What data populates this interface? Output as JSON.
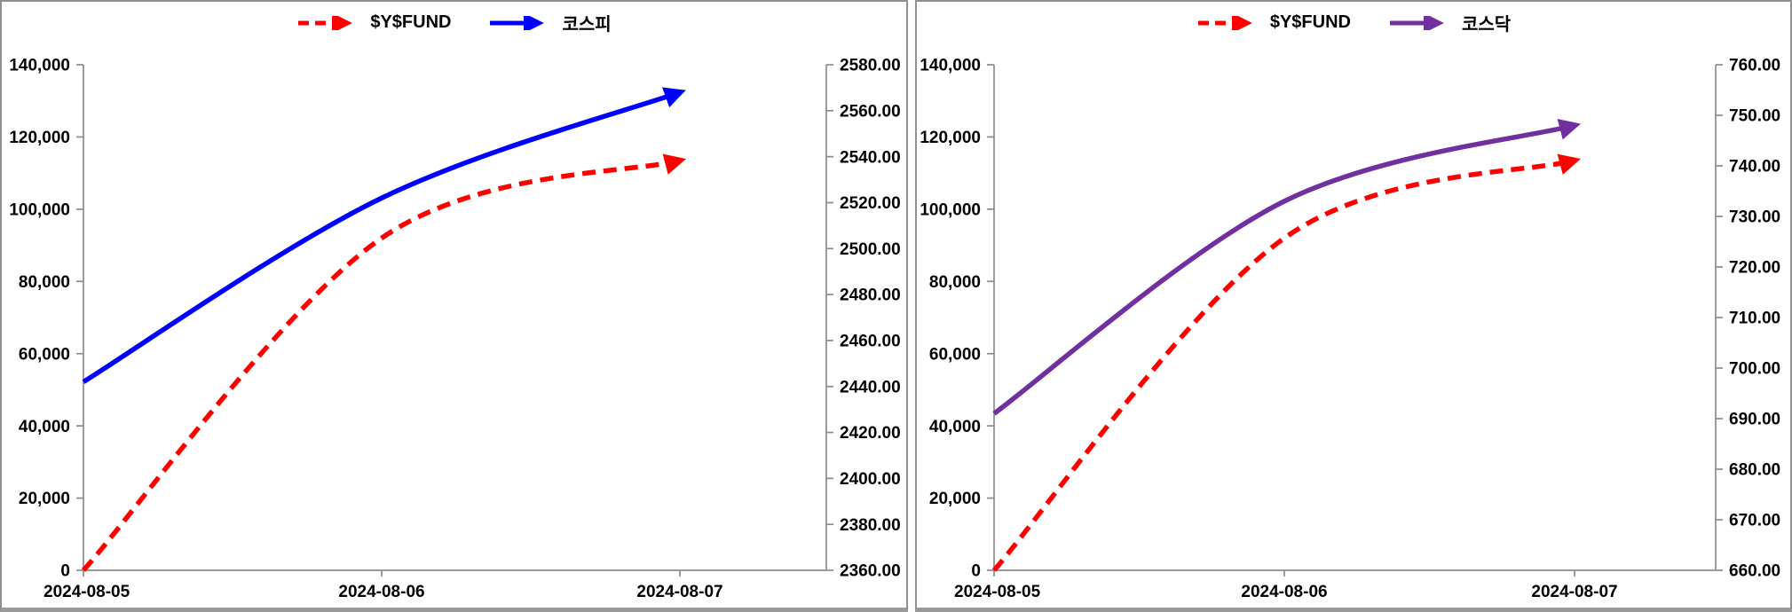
{
  "page": {
    "description": "Two side-by-side fund performance line charts",
    "axis_color": "#8c8c8c",
    "text_color": "#000000"
  },
  "chart_data": [
    {
      "type": "line",
      "title": "",
      "x": [
        "2024-08-05",
        "2024-08-06",
        "2024-08-07"
      ],
      "series": [
        {
          "name": "$Y$FUND",
          "axis": "left",
          "color": "#ff0000",
          "style": "dashed",
          "values": [
            0,
            92000,
            113500
          ]
        },
        {
          "name": "코스피",
          "axis": "right",
          "color": "#0000ff",
          "style": "solid",
          "values": [
            2442,
            2522,
            2568
          ]
        }
      ],
      "left_axis": {
        "min": 0,
        "max": 140000,
        "step": 20000,
        "format": "thousands"
      },
      "right_axis": {
        "min": 2360,
        "max": 2580,
        "step": 20,
        "format": "decimal2"
      },
      "legend_position": "top",
      "grid": false
    },
    {
      "type": "line",
      "title": "",
      "x": [
        "2024-08-05",
        "2024-08-06",
        "2024-08-07"
      ],
      "series": [
        {
          "name": "$Y$FUND",
          "axis": "left",
          "color": "#ff0000",
          "style": "dashed",
          "values": [
            0,
            92000,
            113500
          ]
        },
        {
          "name": "코스닥",
          "axis": "right",
          "color": "#7030a0",
          "style": "solid",
          "values": [
            691,
            733,
            748
          ]
        }
      ],
      "left_axis": {
        "min": 0,
        "max": 140000,
        "step": 20000,
        "format": "thousands"
      },
      "right_axis": {
        "min": 660,
        "max": 760,
        "step": 10,
        "format": "decimal2"
      },
      "legend_position": "top",
      "grid": false
    }
  ]
}
